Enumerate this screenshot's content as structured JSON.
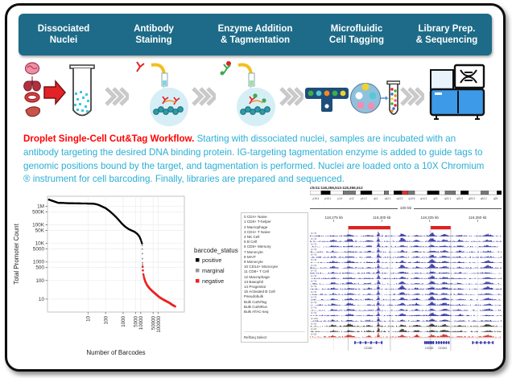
{
  "header": {
    "bg_color": "#1d6b88",
    "steps": [
      {
        "line1": "Dissociated",
        "line2": "Nuclei"
      },
      {
        "line1": "Antibody",
        "line2": "Staining"
      },
      {
        "line1": "Enzyme Addition",
        "line2": "& Tagmentation"
      },
      {
        "line1": "Microfluidic",
        "line2": "Cell Tagging"
      },
      {
        "line1": "Library Prep.",
        "line2": "& Sequencing"
      }
    ]
  },
  "caption": {
    "lead": "Droplet Single-Cell Cut&Tag Workflow.",
    "body": " Starting with dissociated nuclei, samples are incubated with an antibody targeting the desired DNA binding protein. IG-targeting tagmentation enzyme is added to guide tags to genomic positions bound by the target, and tagmentation is performed. Nuclei are loaded onto a 10X Chromium ® instrument for cell barcoding. Finally, libraries are prepared and sequenced.",
    "lead_color": "#ff0000",
    "body_color": "#2aaed6"
  },
  "chart_data": {
    "type": "scatter",
    "title": "",
    "xlabel": "Number of Barcodes",
    "ylabel": "Total Promoter Count",
    "xscale": "log",
    "yscale": "log",
    "xlim": [
      0.05,
      3000000
    ],
    "ylim": [
      2,
      3500000
    ],
    "grid": true,
    "legend_position": "right",
    "legend_title": "barcode_status",
    "xticks": [
      10,
      100,
      1000,
      5000,
      10000,
      50000,
      100000
    ],
    "xtick_labels": [
      "10",
      "100",
      "1000",
      "5000",
      "10000",
      "50000",
      "100000"
    ],
    "yticks": [
      1000000,
      500000,
      100000,
      50000,
      10000,
      5000,
      1000,
      500,
      100,
      10
    ],
    "ytick_labels": [
      "1M",
      "500K",
      "100K",
      "50K",
      "10K",
      "5000",
      "1000",
      "500",
      "100",
      "10"
    ],
    "series": [
      {
        "name": "positive",
        "color": "#000000",
        "points": [
          [
            0.06,
            2300000
          ],
          [
            0.2,
            1550000
          ],
          [
            0.5,
            1500000
          ],
          [
            1,
            1460000
          ],
          [
            2,
            1440000
          ],
          [
            4,
            1430000
          ],
          [
            8,
            1420000
          ],
          [
            15,
            1400000
          ],
          [
            25,
            1350000
          ],
          [
            40,
            1200000
          ],
          [
            60,
            1000000
          ],
          [
            100,
            800000
          ],
          [
            150,
            600000
          ],
          [
            250,
            400000
          ],
          [
            400,
            260000
          ],
          [
            600,
            170000
          ],
          [
            900,
            110000
          ],
          [
            1300,
            80000
          ],
          [
            2000,
            60000
          ],
          [
            3000,
            50000
          ],
          [
            4500,
            42000
          ],
          [
            6500,
            32000
          ],
          [
            8500,
            23000
          ],
          [
            10000,
            16000
          ],
          [
            11000,
            12000
          ],
          [
            11800,
            10000
          ]
        ]
      },
      {
        "name": "marginal",
        "color": "#999999",
        "points": [
          [
            12000,
            8000
          ],
          [
            12150,
            5000
          ],
          [
            12300,
            2800
          ],
          [
            12450,
            1500
          ],
          [
            12600,
            900
          ],
          [
            12700,
            700
          ]
        ]
      },
      {
        "name": "negative",
        "color": "#ee2020",
        "points": [
          [
            12800,
            550
          ],
          [
            13200,
            350
          ],
          [
            14000,
            220
          ],
          [
            15500,
            140
          ],
          [
            18000,
            90
          ],
          [
            22000,
            60
          ],
          [
            30000,
            40
          ],
          [
            45000,
            27
          ],
          [
            70000,
            19
          ],
          [
            110000,
            13
          ],
          [
            170000,
            10
          ],
          [
            260000,
            8
          ],
          [
            400000,
            6.5
          ],
          [
            600000,
            5
          ],
          [
            900000,
            4
          ]
        ]
      }
    ]
  },
  "browser": {
    "locus": "chr11:118,256,513-118,356,512",
    "scale_label": "100 kb",
    "coords": [
      "118,275 kb",
      "118,300 kb",
      "118,325 kb",
      "118,350 kb"
    ],
    "ideogram_bands": [
      "p15.4",
      "p15.1",
      "p14",
      "p12",
      "p11.2",
      "q11",
      "q12.1",
      "q13.2",
      "q13.5",
      "q14.1",
      "q21",
      "q22.1",
      "q22.3",
      "q23.3",
      "q24.2",
      "q25"
    ],
    "highlight_color": "#e02020",
    "highlights": [
      {
        "start": 0.2,
        "end": 0.42
      },
      {
        "start": 0.63,
        "end": 0.735
      }
    ],
    "peak_positions": [
      0.355,
      0.48,
      0.635,
      0.7
    ],
    "tracks": [
      {
        "label": "0  CD4+ Naive",
        "range": "0-70",
        "color": "#2b2ba0"
      },
      {
        "label": "1  CD8+ T-helper",
        "range": "0-70",
        "color": "#2b2ba0"
      },
      {
        "label": "2  Macrophage",
        "range": "0-70",
        "color": "#2b2ba0"
      },
      {
        "label": "3  CD4+ T Naive",
        "range": "0-70",
        "color": "#2b2ba0"
      },
      {
        "label": "4  NK Cell",
        "range": "0-70",
        "color": "#2b2ba0"
      },
      {
        "label": "5  B Cell",
        "range": "0-70",
        "color": "#2b2ba0"
      },
      {
        "label": "6  CD8+ Memory",
        "range": "0-70",
        "color": "#2b2ba0"
      },
      {
        "label": "7  Monocyte",
        "range": "0-70",
        "color": "#2b2ba0"
      },
      {
        "label": "8  MAIT",
        "range": "0-70",
        "color": "#2b2ba0"
      },
      {
        "label": "9  Monocyte",
        "range": "0-70",
        "color": "#2b2ba0"
      },
      {
        "label": "10  CD14+ Monocyte",
        "range": "0-70",
        "color": "#2b2ba0"
      },
      {
        "label": "11  CD8+ T Cell",
        "range": "0-70",
        "color": "#2b2ba0"
      },
      {
        "label": "12  Macrophage",
        "range": "0-70",
        "color": "#2b2ba0"
      },
      {
        "label": "13  Basophil",
        "range": "0-70",
        "color": "#2b2ba0"
      },
      {
        "label": "14  Progenitor",
        "range": "0-70",
        "color": "#2b2ba0"
      },
      {
        "label": "15  Activated B Cell",
        "range": "0-70",
        "color": "#2b2ba0"
      },
      {
        "label": "Pseudobulk",
        "range": "0-148",
        "color": "#1b1b8c"
      },
      {
        "label": "Bulk CutNTag",
        "range": "0-25",
        "color": "#222222"
      },
      {
        "label": "Bulk CutNRun",
        "range": "0-30",
        "color": "#222222"
      },
      {
        "label": "Bulk ATAC-seq",
        "range": "0-90",
        "color": "#cc2222"
      }
    ],
    "genes": [
      {
        "name": "CD3E",
        "start": 0.235,
        "end": 0.375
      },
      {
        "name": "CD3D",
        "start": 0.6,
        "end": 0.645
      },
      {
        "name": "CD3G",
        "start": 0.66,
        "end": 0.725
      },
      {
        "name": "",
        "start": 0.85,
        "end": 0.955
      }
    ],
    "refseq_label": "RefSeq Select"
  }
}
